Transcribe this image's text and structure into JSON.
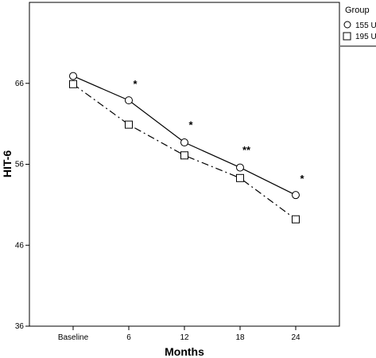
{
  "chart_data": {
    "type": "line",
    "categories": [
      "Baseline",
      "6",
      "12",
      "18",
      "24"
    ],
    "xlabel": "Months",
    "ylabel": "HIT-6",
    "ylim": [
      36,
      76
    ],
    "yticks": [
      36,
      46,
      56,
      66
    ],
    "grid": false,
    "legend": {
      "title": "Group",
      "placement": "right"
    },
    "series": [
      {
        "name": "155 U",
        "marker": "circle",
        "line_style": "solid",
        "values": [
          66.9,
          63.9,
          58.7,
          55.6,
          52.2
        ]
      },
      {
        "name": "195 U",
        "marker": "square",
        "line_style": "dash-dot",
        "values": [
          65.9,
          60.9,
          57.1,
          54.3,
          49.2
        ]
      }
    ],
    "annotations": [
      {
        "category": "6",
        "text": "*",
        "y": 66.0
      },
      {
        "category": "12",
        "text": "*",
        "y": 60.9
      },
      {
        "category": "18",
        "text": "**",
        "y": 57.8
      },
      {
        "category": "24",
        "text": "*",
        "y": 54.3
      }
    ]
  }
}
